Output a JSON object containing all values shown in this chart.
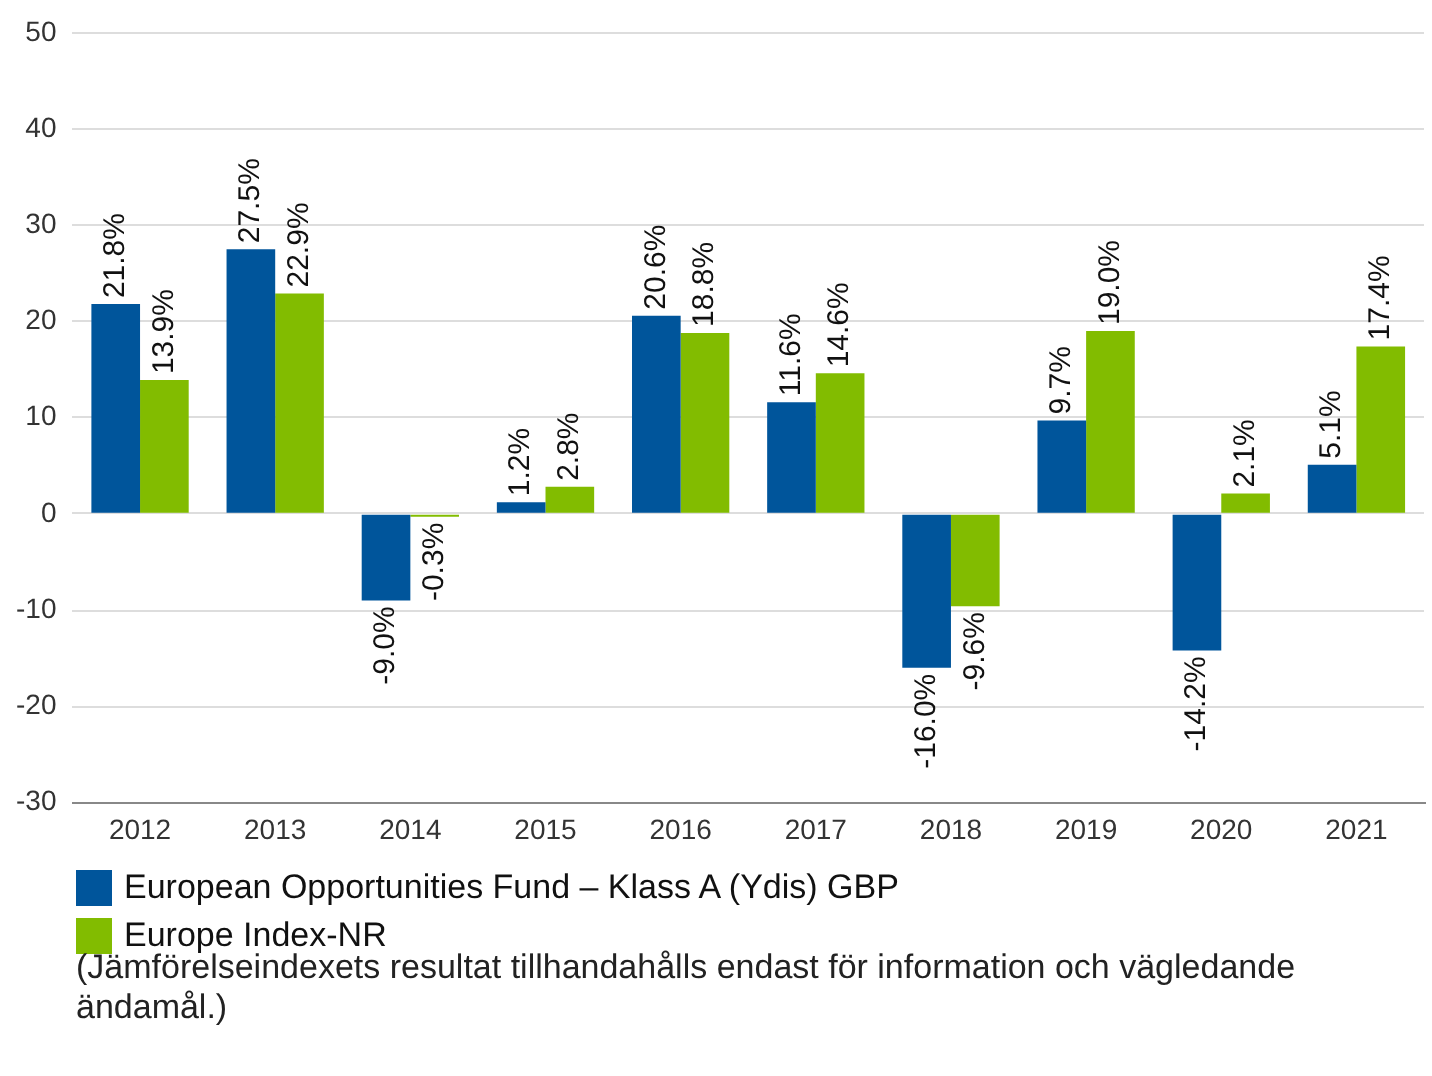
{
  "chart_data": {
    "type": "bar",
    "categories": [
      "2012",
      "2013",
      "2014",
      "2015",
      "2016",
      "2017",
      "2018",
      "2019",
      "2020",
      "2021"
    ],
    "series": [
      {
        "name": "European Opportunities Fund – Klass A (Ydis) GBP",
        "color": "#00559b",
        "values": [
          21.8,
          27.5,
          -9.0,
          1.2,
          20.6,
          11.6,
          -16.0,
          9.7,
          -14.2,
          5.1
        ],
        "value_labels": [
          "21.8%",
          "27.5%",
          "-9.0%",
          "1.2%",
          "20.6%",
          "11.6%",
          "-16.0%",
          "9.7%",
          "-14.2%",
          "5.1%"
        ]
      },
      {
        "name": "Europe Index-NR",
        "color": "#82bc00",
        "values": [
          13.9,
          22.9,
          -0.3,
          2.8,
          18.8,
          14.6,
          -9.6,
          19.0,
          2.1,
          17.4
        ],
        "value_labels": [
          "13.9%",
          "22.9%",
          "-0.3%",
          "2.8%",
          "18.8%",
          "14.6%",
          "-9.6%",
          "19.0%",
          "2.1%",
          "17.4%"
        ]
      }
    ],
    "ylim": [
      -30,
      50
    ],
    "yticks": [
      -30,
      -20,
      -10,
      0,
      10,
      20,
      30,
      40,
      50
    ],
    "grid": "y",
    "legend": "bottom",
    "annotations": [
      "(Jämförelseindexets resultat tillhandahålls endast för information och vägledande ändamål.)"
    ]
  }
}
